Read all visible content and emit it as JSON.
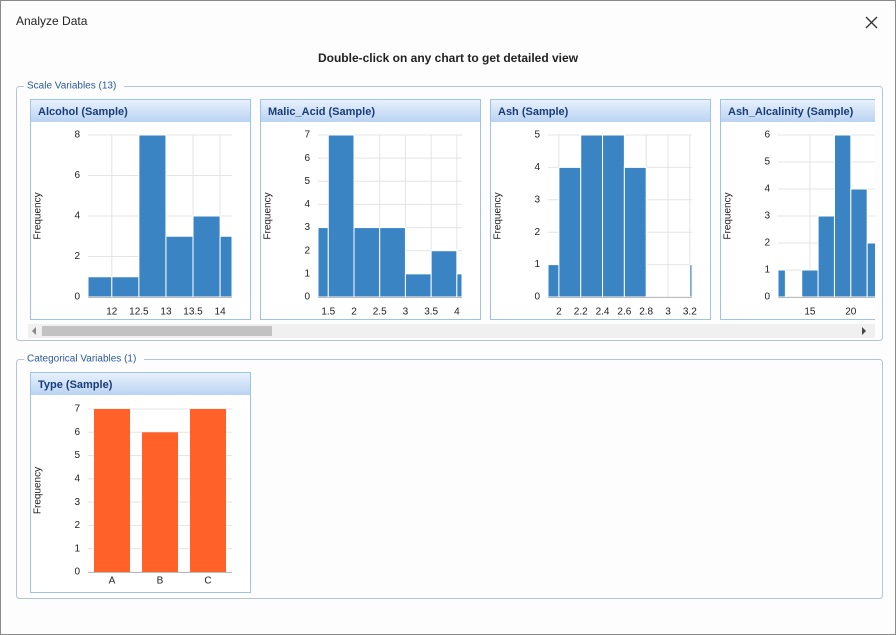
{
  "window": {
    "title": "Analyze Data",
    "instruction": "Double-click on any chart to get detailed view"
  },
  "groups": [
    {
      "label": "Scale Variables (13)"
    },
    {
      "label": "Categorical Variables (1)"
    }
  ],
  "chart_data": [
    {
      "type": "histogram",
      "title": "Alcohol (Sample)",
      "y_label": "Frequency",
      "color": "#3a84c4",
      "bins": [
        11.56,
        12,
        12.5,
        13,
        13.5,
        14,
        14.22
      ],
      "values": [
        1,
        1,
        8,
        3,
        4,
        3
      ],
      "xlim": [
        11.56,
        14.22
      ],
      "xticks": [
        12,
        12.5,
        13,
        13.5,
        14
      ],
      "ylim": [
        0,
        8
      ],
      "yticks": [
        0,
        2,
        4,
        6,
        8
      ],
      "grid": true
    },
    {
      "type": "histogram",
      "title": "Malic_Acid (Sample)",
      "y_label": "Frequency",
      "color": "#3a84c4",
      "bins": [
        1.3,
        1.5,
        2,
        2.5,
        3,
        3.5,
        4,
        4.1
      ],
      "values": [
        3,
        7,
        3,
        3,
        1,
        2,
        1
      ],
      "xlim": [
        1.3,
        4.1
      ],
      "xticks": [
        1.5,
        2,
        2.5,
        3,
        3.5,
        4
      ],
      "ylim": [
        0,
        7
      ],
      "yticks": [
        0,
        1,
        2,
        3,
        4,
        5,
        6,
        7
      ],
      "grid": true
    },
    {
      "type": "histogram",
      "title": "Ash (Sample)",
      "y_label": "Frequency",
      "color": "#3a84c4",
      "bins": [
        1.9,
        2,
        2.2,
        2.4,
        2.6,
        2.8,
        3,
        3.2,
        3.22
      ],
      "values": [
        1,
        4,
        5,
        5,
        4,
        0,
        0,
        1
      ],
      "xlim": [
        1.9,
        3.22
      ],
      "xticks": [
        2,
        2.2,
        2.4,
        2.6,
        2.8,
        3,
        3.2
      ],
      "ylim": [
        0,
        5
      ],
      "yticks": [
        0,
        1,
        2,
        3,
        4,
        5
      ],
      "grid": true
    },
    {
      "type": "histogram",
      "title": "Ash_Alcalinity (Sample)",
      "y_label": "Frequency",
      "color": "#3a84c4",
      "bins": [
        11.1,
        12,
        14,
        16,
        18,
        20,
        22,
        24
      ],
      "values": [
        1,
        0,
        1,
        3,
        6,
        4,
        2
      ],
      "xlim": [
        11.1,
        28.7
      ],
      "xticks": [
        15,
        20
      ],
      "ylim": [
        0,
        6
      ],
      "yticks": [
        0,
        1,
        2,
        3,
        4,
        5,
        6
      ],
      "grid": true
    },
    {
      "type": "bar",
      "title": "Type (Sample)",
      "y_label": "Frequency",
      "color": "#ff6128",
      "categories": [
        "A",
        "B",
        "C"
      ],
      "values": [
        7,
        6,
        7
      ],
      "ylim": [
        0,
        7
      ],
      "yticks": [
        0,
        1,
        2,
        3,
        4,
        5,
        6,
        7
      ],
      "grid": true
    }
  ]
}
